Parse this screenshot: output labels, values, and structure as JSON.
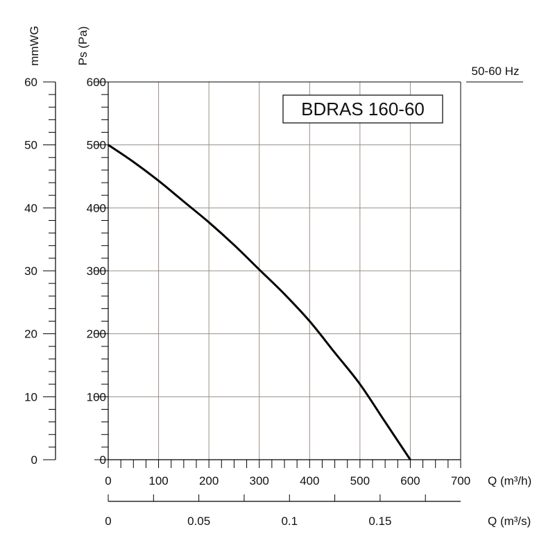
{
  "chart_data": {
    "type": "line",
    "title": "BDRAS 160-60",
    "frequency_label": "50-60 Hz",
    "ylabel": "Ps (Pa)",
    "ylabel_secondary": "mmWG",
    "xlabel": "Q (m³/h)",
    "xlabel_secondary": "Q (m³/s)",
    "xlim": [
      0,
      700
    ],
    "ylim": [
      0,
      600
    ],
    "ylim_secondary": [
      0,
      60
    ],
    "xlim_secondary": [
      0,
      0.19444
    ],
    "grid": true,
    "x_ticks": [
      0,
      100,
      200,
      300,
      400,
      500,
      600,
      700
    ],
    "x_tick_labels": [
      "0",
      "100",
      "200",
      "300",
      "400",
      "500",
      "600",
      "700"
    ],
    "y_ticks": [
      0,
      100,
      200,
      300,
      400,
      500,
      600
    ],
    "y_tick_labels": [
      "0",
      "100",
      "200",
      "300",
      "400",
      "500",
      "600"
    ],
    "y2_ticks": [
      0,
      10,
      20,
      30,
      40,
      50,
      60
    ],
    "y2_tick_labels": [
      "0",
      "10",
      "20",
      "30",
      "40",
      "50",
      "60"
    ],
    "x2_ticks": [
      0,
      0.05,
      0.1,
      0.15
    ],
    "x2_tick_labels": [
      "0",
      "0.05",
      "0.1",
      "0.15"
    ],
    "series": [
      {
        "x": [
          0,
          50,
          100,
          150,
          200,
          250,
          300,
          350,
          400,
          450,
          500,
          550,
          600
        ],
        "values": [
          500,
          473,
          443,
          410,
          377,
          341,
          302,
          263,
          220,
          170,
          120,
          60,
          0
        ]
      }
    ],
    "colors": {
      "curve": "#000000",
      "grid": "#9a8f84",
      "axis": "#000000"
    }
  }
}
